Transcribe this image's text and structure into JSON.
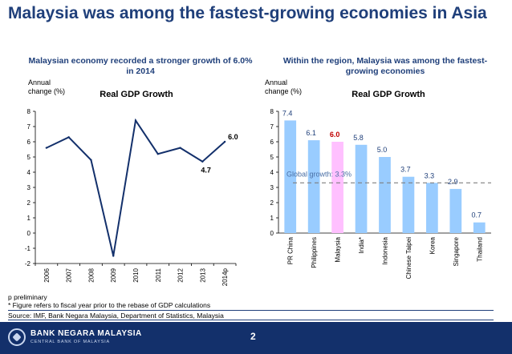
{
  "title": "Malaysia was among the fastest-growing economies in Asia",
  "left_subtitle": "Malaysian economy recorded a stronger growth of 6.0% in 2014",
  "right_subtitle": "Within the region, Malaysia was among the fastest-growing economies",
  "notes": {
    "preliminary": "p preliminary",
    "fiscal": "* Figure refers to fiscal year prior to the rebase of GDP calculations"
  },
  "source": "Source: IMF, Bank Negara Malaysia, Department of Statistics, Malaysia",
  "footer": {
    "bank_name": "BANK NEGARA MALAYSIA",
    "bank_sub": "CENTRAL BANK OF MALAYSIA",
    "page_number": "2"
  },
  "colors": {
    "title": "#1f3f7a",
    "line": "#13306b",
    "bar": "#99ccff",
    "bar_highlight": "#ffc0ff",
    "label_default": "#1f3f7a",
    "label_highlight": "#c00000",
    "footer": "#13306b"
  },
  "chart_data": [
    {
      "type": "line",
      "title": "Real GDP Growth",
      "ylabel_lines": [
        "Annual",
        "change (%)"
      ],
      "x": [
        "2006",
        "2007",
        "2008",
        "2009",
        "2010",
        "2011",
        "2012",
        "2013",
        "2014p"
      ],
      "values": [
        5.6,
        6.3,
        4.8,
        -1.5,
        7.4,
        5.2,
        5.6,
        4.7,
        6.0
      ],
      "labels": [
        {
          "x": "2013",
          "text": "4.7"
        },
        {
          "x": "2014p",
          "text": "6.0"
        }
      ],
      "ylim": [
        -2,
        8
      ],
      "yticks": [
        -2,
        -1,
        0,
        1,
        2,
        3,
        4,
        5,
        6,
        7,
        8
      ],
      "grid": false
    },
    {
      "type": "bar",
      "title": "Real GDP Growth",
      "ylabel_lines": [
        "Annual",
        "change (%)"
      ],
      "categories": [
        "PR China",
        "Philippines",
        "Malaysia",
        "India*",
        "Indonesia",
        "Chinese Taipei",
        "Korea",
        "Singapore",
        "Thailand"
      ],
      "values": [
        7.4,
        6.1,
        6.0,
        5.8,
        5.0,
        3.7,
        3.3,
        2.9,
        0.7
      ],
      "value_labels": [
        "7.4",
        "6.1",
        "6.0",
        "5.8",
        "5.0",
        "3.7",
        "3.3",
        "2.9",
        "0.7"
      ],
      "highlight": "Malaysia",
      "reference_line": {
        "value": 3.3,
        "label": "Global growth: 3.3%"
      },
      "ylim": [
        0,
        8
      ],
      "yticks": [
        0,
        1,
        2,
        3,
        4,
        5,
        6,
        7,
        8
      ],
      "grid": false
    }
  ]
}
